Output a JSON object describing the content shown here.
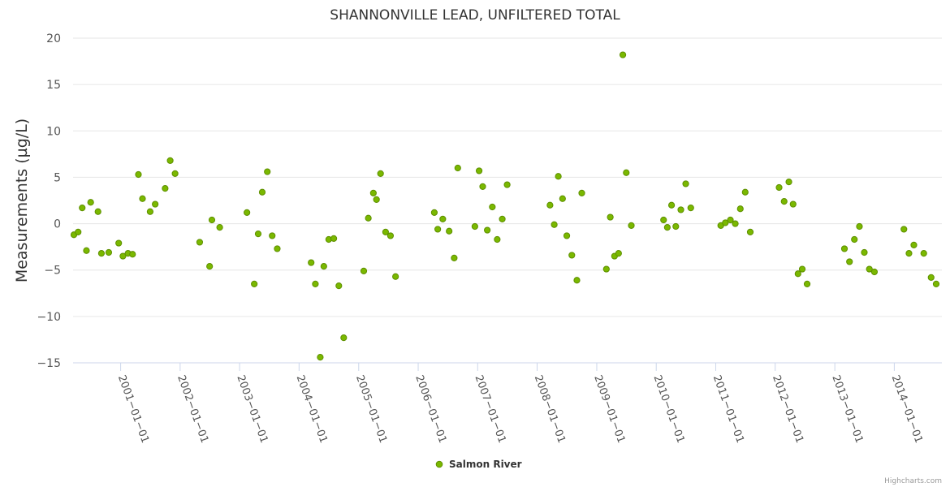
{
  "chart_data": {
    "type": "scatter",
    "title": "SHANNONVILLE LEAD, UNFILTERED TOTAL",
    "xlabel": "",
    "ylabel": "Measurements (µg/L)",
    "ylim": [
      -15,
      20
    ],
    "yticks": [
      20,
      15,
      10,
      5,
      0,
      -5,
      -10,
      -15
    ],
    "xlim": [
      "2000-03-15",
      "2014-10-20"
    ],
    "xticks": [
      "2001-01-01",
      "2002-01-01",
      "2003-01-01",
      "2004-01-01",
      "2005-01-01",
      "2006-01-01",
      "2007-01-01",
      "2008-01-01",
      "2009-01-01",
      "2010-01-01",
      "2011-01-01",
      "2012-01-01",
      "2013-01-01",
      "2014-01-01"
    ],
    "grid": true,
    "legend": "bottom-center",
    "colors": {
      "marker_fill": "#7ab800",
      "marker_stroke": "#5e8f00",
      "grid": "#e6e6e6",
      "axis": "#ccd6eb"
    },
    "series": [
      {
        "name": "Salmon River",
        "points": [
          [
            "2000-03-20",
            -1.2
          ],
          [
            "2000-04-15",
            -0.9
          ],
          [
            "2000-05-10",
            1.7
          ],
          [
            "2000-06-05",
            -2.9
          ],
          [
            "2000-07-01",
            2.3
          ],
          [
            "2000-08-15",
            1.3
          ],
          [
            "2000-09-05",
            -3.2
          ],
          [
            "2000-10-20",
            -3.1
          ],
          [
            "2000-12-20",
            -2.1
          ],
          [
            "2001-01-15",
            -3.5
          ],
          [
            "2001-02-15",
            -3.2
          ],
          [
            "2001-03-15",
            -3.3
          ],
          [
            "2001-04-20",
            5.3
          ],
          [
            "2001-05-15",
            2.7
          ],
          [
            "2001-07-01",
            1.3
          ],
          [
            "2001-08-01",
            2.1
          ],
          [
            "2001-10-01",
            3.8
          ],
          [
            "2001-11-01",
            6.8
          ],
          [
            "2001-12-01",
            5.4
          ],
          [
            "2002-05-01",
            -2.0
          ],
          [
            "2002-07-01",
            -4.6
          ],
          [
            "2002-07-15",
            0.4
          ],
          [
            "2002-09-01",
            -0.4
          ],
          [
            "2003-02-15",
            1.2
          ],
          [
            "2003-04-01",
            -6.5
          ],
          [
            "2003-04-25",
            -1.1
          ],
          [
            "2003-05-20",
            3.4
          ],
          [
            "2003-06-20",
            5.6
          ],
          [
            "2003-07-20",
            -1.3
          ],
          [
            "2003-08-20",
            -2.7
          ],
          [
            "2004-03-15",
            -4.2
          ],
          [
            "2004-04-10",
            -6.5
          ],
          [
            "2004-05-10",
            -14.4
          ],
          [
            "2004-06-01",
            -4.6
          ],
          [
            "2004-07-01",
            -1.7
          ],
          [
            "2004-08-01",
            -1.6
          ],
          [
            "2004-09-01",
            -6.7
          ],
          [
            "2004-10-01",
            -12.3
          ],
          [
            "2005-02-01",
            -5.1
          ],
          [
            "2005-03-01",
            0.6
          ],
          [
            "2005-04-01",
            3.3
          ],
          [
            "2005-04-20",
            2.6
          ],
          [
            "2005-05-15",
            5.4
          ],
          [
            "2005-06-15",
            -0.9
          ],
          [
            "2005-07-15",
            -1.3
          ],
          [
            "2005-08-15",
            -5.7
          ],
          [
            "2006-04-10",
            1.2
          ],
          [
            "2006-05-01",
            -0.6
          ],
          [
            "2006-06-01",
            0.5
          ],
          [
            "2006-07-10",
            -0.8
          ],
          [
            "2006-08-10",
            -3.7
          ],
          [
            "2006-09-01",
            6.0
          ],
          [
            "2006-12-15",
            -0.3
          ],
          [
            "2007-01-10",
            5.7
          ],
          [
            "2007-02-01",
            4.0
          ],
          [
            "2007-03-01",
            -0.7
          ],
          [
            "2007-04-01",
            1.8
          ],
          [
            "2007-05-01",
            -1.7
          ],
          [
            "2007-06-01",
            0.5
          ],
          [
            "2007-07-01",
            4.2
          ],
          [
            "2008-03-20",
            2.0
          ],
          [
            "2008-04-15",
            -0.1
          ],
          [
            "2008-05-10",
            5.1
          ],
          [
            "2008-06-05",
            2.7
          ],
          [
            "2008-07-01",
            -1.3
          ],
          [
            "2008-08-01",
            -3.4
          ],
          [
            "2008-09-01",
            -6.1
          ],
          [
            "2008-10-01",
            3.3
          ],
          [
            "2009-03-01",
            -4.9
          ],
          [
            "2009-03-25",
            0.7
          ],
          [
            "2009-04-20",
            -3.5
          ],
          [
            "2009-05-15",
            -3.2
          ],
          [
            "2009-06-10",
            18.2
          ],
          [
            "2009-07-01",
            5.5
          ],
          [
            "2009-08-01",
            -0.2
          ],
          [
            "2010-02-15",
            0.4
          ],
          [
            "2010-03-10",
            -0.4
          ],
          [
            "2010-04-05",
            2.0
          ],
          [
            "2010-05-01",
            -0.3
          ],
          [
            "2010-06-01",
            1.5
          ],
          [
            "2010-07-01",
            4.3
          ],
          [
            "2010-08-01",
            1.7
          ],
          [
            "2011-02-01",
            -0.2
          ],
          [
            "2011-03-01",
            0.1
          ],
          [
            "2011-04-01",
            0.4
          ],
          [
            "2011-05-01",
            0.0
          ],
          [
            "2011-06-01",
            1.6
          ],
          [
            "2011-07-01",
            3.4
          ],
          [
            "2011-08-01",
            -0.9
          ],
          [
            "2012-01-25",
            3.9
          ],
          [
            "2012-02-25",
            2.4
          ],
          [
            "2012-03-25",
            4.5
          ],
          [
            "2012-04-20",
            2.1
          ],
          [
            "2012-05-20",
            -5.4
          ],
          [
            "2012-06-15",
            -4.9
          ],
          [
            "2012-07-15",
            -6.5
          ],
          [
            "2013-03-01",
            -2.7
          ],
          [
            "2013-04-01",
            -4.1
          ],
          [
            "2013-05-01",
            -1.7
          ],
          [
            "2013-06-01",
            -0.3
          ],
          [
            "2013-07-01",
            -3.1
          ],
          [
            "2013-08-01",
            -4.9
          ],
          [
            "2013-09-01",
            -5.2
          ],
          [
            "2014-03-01",
            -0.6
          ],
          [
            "2014-04-01",
            -3.2
          ],
          [
            "2014-05-01",
            -2.3
          ],
          [
            "2014-07-01",
            -3.2
          ],
          [
            "2014-08-15",
            -5.8
          ],
          [
            "2014-09-15",
            -6.5
          ]
        ]
      }
    ]
  },
  "credits": "Highcharts.com"
}
